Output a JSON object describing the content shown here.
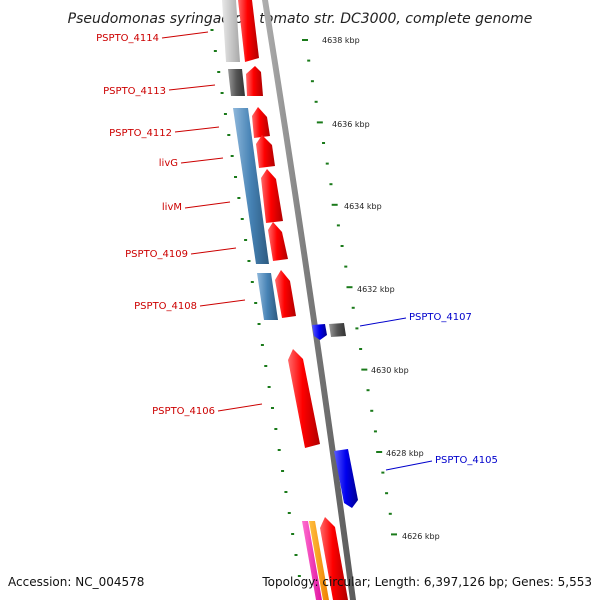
{
  "title": "Pseudomonas syringae pv. tomato str. DC3000, complete genome",
  "footer": {
    "accession": "Accession: NC_004578",
    "summary": "Topology: circular; Length: 6,397,126 bp; Genes: 5,553"
  },
  "colors": {
    "forward_gene": "#ff0000",
    "reverse_gene": "#0000ee",
    "cog_blue": "#4682b4",
    "cog_gray": "#555555",
    "cog_light": "#cccccc",
    "backbone": "#808080",
    "tick": "#1a7a1a",
    "label_red": "#cc0000",
    "label_blue": "#0000cc"
  },
  "ticks": [
    {
      "label": "4638 kbp"
    },
    {
      "label": "4636 kbp"
    },
    {
      "label": "4634 kbp"
    },
    {
      "label": "4632 kbp"
    },
    {
      "label": "4630 kbp"
    },
    {
      "label": "4628 kbp"
    },
    {
      "label": "4626 kbp"
    }
  ],
  "genes": [
    {
      "name": "PSPTO_4114",
      "strand": "+"
    },
    {
      "name": "PSPTO_4113",
      "strand": "+"
    },
    {
      "name": "PSPTO_4112",
      "strand": "+"
    },
    {
      "name": "livG",
      "strand": "+"
    },
    {
      "name": "livM",
      "strand": "+"
    },
    {
      "name": "PSPTO_4109",
      "strand": "+"
    },
    {
      "name": "PSPTO_4108",
      "strand": "+"
    },
    {
      "name": "PSPTO_4107",
      "strand": "-"
    },
    {
      "name": "PSPTO_4106",
      "strand": "+"
    },
    {
      "name": "PSPTO_4105",
      "strand": "-"
    }
  ]
}
